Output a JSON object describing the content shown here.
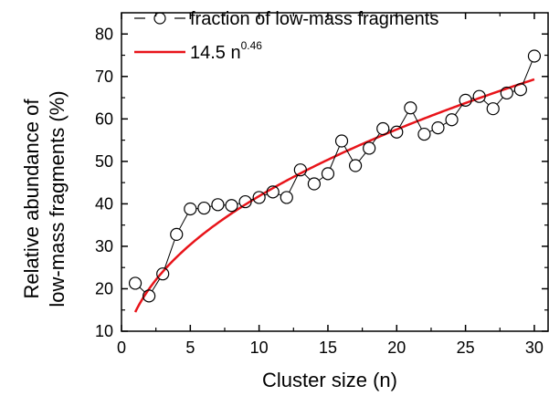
{
  "chart_data": {
    "type": "scatter",
    "xlabel": "Cluster size (n)",
    "ylabel_lines": [
      "Relative abundance of",
      "low-mass fragments (%)"
    ],
    "xlim": [
      0,
      31
    ],
    "ylim": [
      10,
      85
    ],
    "x_ticks": [
      0,
      5,
      10,
      15,
      20,
      25,
      30
    ],
    "y_ticks": [
      10,
      20,
      30,
      40,
      50,
      60,
      70,
      80
    ],
    "grid": false,
    "legend_position": "top-left",
    "series": [
      {
        "name": "fraction of low-mass fragments",
        "kind": "line-with-open-circles",
        "color": "#000000",
        "x": [
          1,
          2,
          3,
          4,
          5,
          6,
          7,
          8,
          9,
          10,
          11,
          12,
          13,
          14,
          15,
          16,
          17,
          18,
          19,
          20,
          21,
          22,
          23,
          24,
          25,
          26,
          27,
          28,
          29,
          30
        ],
        "y": [
          21.3,
          18.3,
          23.5,
          32.8,
          38.8,
          39.0,
          39.8,
          39.6,
          40.5,
          41.5,
          42.8,
          41.5,
          48.0,
          44.7,
          47.1,
          54.8,
          49.0,
          53.1,
          57.7,
          56.9,
          62.6,
          56.4,
          57.9,
          59.8,
          64.4,
          65.3,
          62.4,
          66.1,
          66.9,
          74.8
        ]
      },
      {
        "name": "14.5 n",
        "name_superscript": "0.46",
        "kind": "fit-curve",
        "color": "#e8141a",
        "coefficient": 14.5,
        "exponent": 0.46,
        "x_range": [
          1,
          30
        ]
      }
    ]
  }
}
